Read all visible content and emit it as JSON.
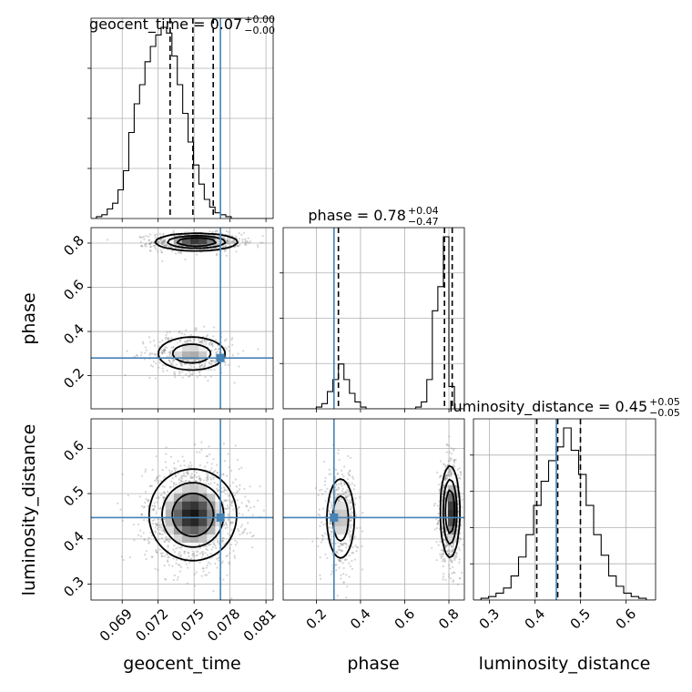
{
  "chart_data": {
    "type": "corner",
    "parameters": [
      "geocent_time",
      "phase",
      "luminosity_distance"
    ],
    "axis_labels": {
      "geocent_time": "geocent_time",
      "phase": "phase",
      "luminosity_distance": "luminosity_distance"
    },
    "titles": [
      {
        "param": "geocent_time",
        "prefix": "geocent_time = ",
        "median": "0.07",
        "plus": "+0.00",
        "minus": "−0.00"
      },
      {
        "param": "phase",
        "prefix": "phase = ",
        "median": "0.78",
        "plus": "+0.04",
        "minus": "−0.47"
      },
      {
        "param": "luminosity_distance",
        "prefix": "luminosity_distance = ",
        "median": "0.45",
        "plus": "+0.05",
        "minus": "−0.05"
      }
    ],
    "ranges": {
      "geocent_time": [
        0.0664,
        0.0816
      ],
      "phase": [
        0.05,
        0.87
      ],
      "luminosity_distance": [
        0.265,
        0.665
      ]
    },
    "ticks": {
      "geocent_time": [
        "0.069",
        "0.072",
        "0.075",
        "0.078",
        "0.081"
      ],
      "phase_x": [
        "0.2",
        "0.4",
        "0.6",
        "0.8"
      ],
      "phase_y": [
        "0.2",
        "0.4",
        "0.6",
        "0.8"
      ],
      "luminosity_distance_x": [
        "0.3",
        "0.4",
        "0.5",
        "0.6"
      ],
      "luminosity_distance_y": [
        "0.3",
        "0.4",
        "0.5",
        "0.6"
      ]
    },
    "truths": {
      "geocent_time": 0.0772,
      "phase": 0.28,
      "luminosity_distance": 0.447
    },
    "quantiles": {
      "geocent_time": [
        0.073,
        0.0749,
        0.0766
      ],
      "phase": [
        0.3,
        0.78,
        0.815
      ],
      "luminosity_distance": [
        0.404,
        0.45,
        0.5
      ]
    },
    "histograms": {
      "geocent_time": {
        "start": 0.0664,
        "step": 0.00045,
        "counts": [
          0,
          1,
          2,
          5,
          8,
          15,
          25,
          45,
          60,
          70,
          82,
          90,
          96,
          100,
          97,
          85,
          70,
          55,
          40,
          28,
          18,
          10,
          6,
          3,
          2,
          1,
          0,
          0,
          0,
          0,
          0,
          0,
          0,
          0
        ]
      },
      "phase": {
        "start": 0.05,
        "step": 0.025,
        "counts": [
          0,
          0,
          0,
          0,
          0,
          0,
          1,
          3,
          10,
          17,
          26,
          17,
          9,
          4,
          1,
          0,
          0,
          0,
          0,
          0,
          0,
          0,
          0,
          0,
          1,
          4,
          17,
          57,
          71,
          100,
          13,
          0,
          0
        ]
      },
      "luminosity_distance": {
        "start": 0.265,
        "step": 0.0165,
        "counts": [
          0,
          1,
          2,
          4,
          7,
          14,
          25,
          38,
          55,
          69,
          81,
          89,
          100,
          87,
          73,
          55,
          38,
          26,
          14,
          8,
          4,
          2,
          1,
          0,
          0
        ]
      }
    },
    "contour_blobs": {
      "geocent_time_vs_phase": [
        {
          "cx": 0.0752,
          "cy": 0.805,
          "sx": 0.0016,
          "sy": 0.018,
          "weight": 1.0
        },
        {
          "cx": 0.0748,
          "cy": 0.3,
          "sx": 0.0015,
          "sy": 0.04,
          "weight": 0.55
        }
      ],
      "geocent_time_vs_luminosity_distance": [
        {
          "cx": 0.0749,
          "cy": 0.453,
          "sx": 0.0017,
          "sy": 0.047,
          "weight": 1.0
        }
      ],
      "phase_vs_luminosity_distance": [
        {
          "cx": 0.31,
          "cy": 0.445,
          "sx": 0.033,
          "sy": 0.047,
          "weight": 0.55
        },
        {
          "cx": 0.805,
          "cy": 0.46,
          "sx": 0.02,
          "sy": 0.047,
          "weight": 1.0
        }
      ]
    },
    "contour_levels": [
      0.39,
      0.86,
      0.99
    ],
    "colors": {
      "truth": "#4682b4",
      "line": "#000000",
      "grid": "#b0b0b0",
      "scatter": "#888888"
    }
  }
}
